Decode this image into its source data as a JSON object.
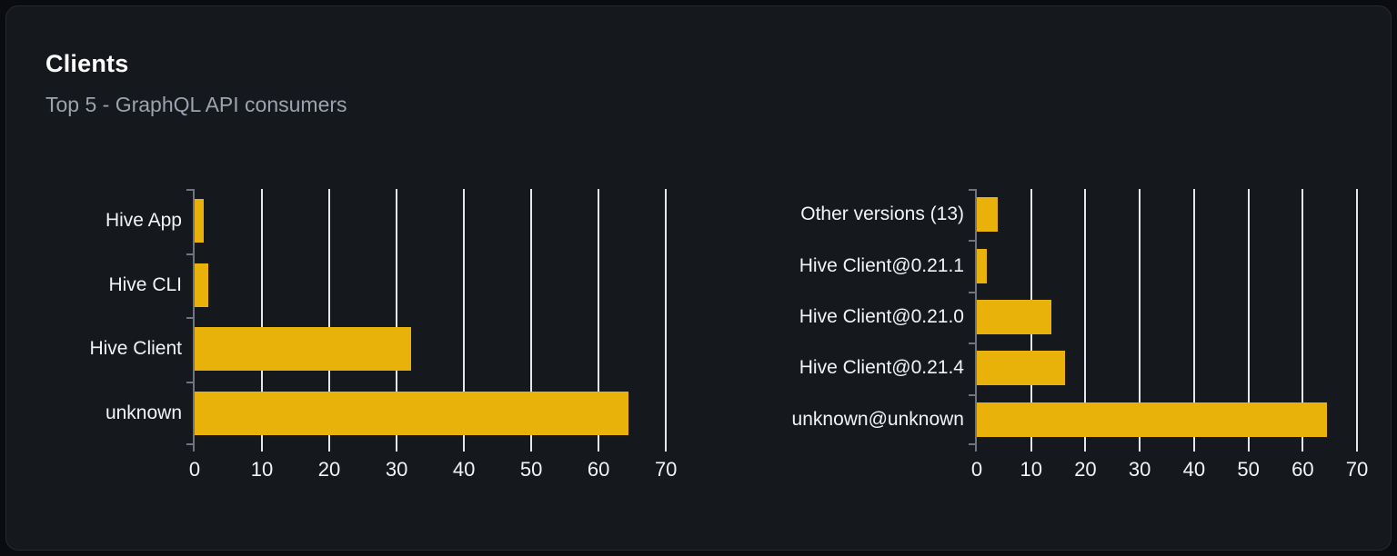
{
  "card": {
    "title": "Clients",
    "subtitle": "Top 5 - GraphQL API consumers"
  },
  "colors": {
    "page_bg": "#0b0c0f",
    "card_bg": "#15181d",
    "card_border": "#272a31",
    "bar": "#e8b20b",
    "grid": "#e5e7eb",
    "spine": "#6f7480",
    "label": "#f3f4f6",
    "subtitle": "#9ca3af",
    "title": "#ffffff"
  },
  "chart_data": [
    {
      "type": "bar",
      "name": "clients-by-name",
      "orientation": "horizontal",
      "categories": [
        "Hive App",
        "Hive CLI",
        "Hive Client",
        "unknown"
      ],
      "values": [
        1.3,
        2,
        32.2,
        64.5
      ],
      "xlabel": "",
      "ylabel": "",
      "xlim": [
        0,
        72
      ],
      "xticks": [
        0,
        10,
        20,
        30,
        40,
        50,
        60,
        70
      ],
      "grid": true,
      "legend": false
    },
    {
      "type": "bar",
      "name": "clients-by-version",
      "orientation": "horizontal",
      "categories": [
        "Other versions (13)",
        "Hive Client@0.21.1",
        "Hive Client@0.21.0",
        "Hive Client@0.21.4",
        "unknown@unknown"
      ],
      "values": [
        3.8,
        1.9,
        13.7,
        16.3,
        64.4
      ],
      "xlabel": "",
      "ylabel": "",
      "xlim": [
        0,
        72
      ],
      "xticks": [
        0,
        10,
        20,
        30,
        40,
        50,
        60,
        70
      ],
      "grid": true,
      "legend": false
    }
  ]
}
